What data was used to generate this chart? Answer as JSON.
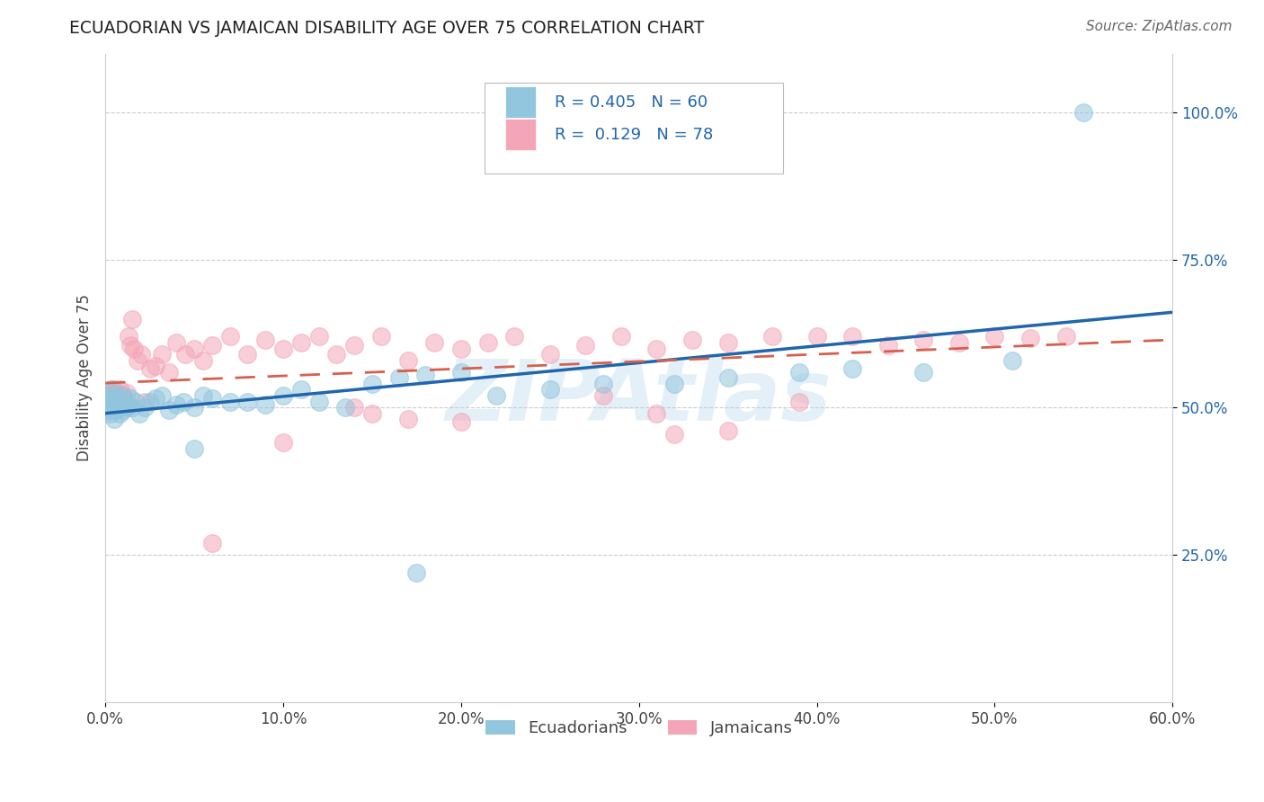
{
  "title": "ECUADORIAN VS JAMAICAN DISABILITY AGE OVER 75 CORRELATION CHART",
  "source_text": "Source: ZipAtlas.com",
  "ylabel": "Disability Age Over 75",
  "xlim": [
    0.0,
    0.6
  ],
  "ylim": [
    0.0,
    1.1
  ],
  "xtick_labels": [
    "0.0%",
    "10.0%",
    "20.0%",
    "30.0%",
    "40.0%",
    "50.0%",
    "60.0%"
  ],
  "xtick_vals": [
    0.0,
    0.1,
    0.2,
    0.3,
    0.4,
    0.5,
    0.6
  ],
  "ytick_labels": [
    "25.0%",
    "50.0%",
    "75.0%",
    "100.0%"
  ],
  "ytick_vals": [
    0.25,
    0.5,
    0.75,
    1.0
  ],
  "legend_label1": "Ecuadorians",
  "legend_label2": "Jamaicans",
  "R1": 0.405,
  "N1": 60,
  "R2": 0.129,
  "N2": 78,
  "color_blue": "#92c5de",
  "color_pink": "#f4a6b8",
  "line_blue": "#2166ac",
  "line_pink": "#d6604d",
  "watermark": "ZIPAtlas",
  "background_color": "#ffffff",
  "ecuadorians_x": [
    0.001,
    0.001,
    0.002,
    0.002,
    0.003,
    0.003,
    0.004,
    0.004,
    0.005,
    0.005,
    0.005,
    0.006,
    0.006,
    0.007,
    0.007,
    0.008,
    0.008,
    0.009,
    0.01,
    0.01,
    0.011,
    0.012,
    0.013,
    0.014,
    0.015,
    0.017,
    0.019,
    0.022,
    0.025,
    0.028,
    0.032,
    0.036,
    0.04,
    0.044,
    0.05,
    0.055,
    0.06,
    0.05,
    0.07,
    0.08,
    0.09,
    0.1,
    0.11,
    0.12,
    0.135,
    0.15,
    0.165,
    0.18,
    0.2,
    0.22,
    0.25,
    0.28,
    0.175,
    0.32,
    0.35,
    0.39,
    0.42,
    0.46,
    0.51,
    0.55
  ],
  "ecuadorians_y": [
    0.5,
    0.51,
    0.495,
    0.52,
    0.505,
    0.49,
    0.515,
    0.53,
    0.5,
    0.48,
    0.51,
    0.52,
    0.495,
    0.51,
    0.505,
    0.5,
    0.49,
    0.51,
    0.52,
    0.495,
    0.51,
    0.5,
    0.505,
    0.515,
    0.5,
    0.51,
    0.49,
    0.5,
    0.51,
    0.515,
    0.52,
    0.495,
    0.505,
    0.51,
    0.5,
    0.52,
    0.515,
    0.43,
    0.51,
    0.51,
    0.505,
    0.52,
    0.53,
    0.51,
    0.5,
    0.54,
    0.55,
    0.555,
    0.56,
    0.52,
    0.53,
    0.54,
    0.22,
    0.54,
    0.55,
    0.56,
    0.565,
    0.56,
    0.58,
    1.0
  ],
  "jamaicans_x": [
    0.001,
    0.001,
    0.002,
    0.002,
    0.003,
    0.003,
    0.004,
    0.004,
    0.005,
    0.005,
    0.005,
    0.006,
    0.006,
    0.007,
    0.007,
    0.008,
    0.008,
    0.009,
    0.01,
    0.01,
    0.011,
    0.012,
    0.013,
    0.014,
    0.015,
    0.016,
    0.018,
    0.02,
    0.022,
    0.025,
    0.028,
    0.032,
    0.036,
    0.04,
    0.045,
    0.05,
    0.055,
    0.06,
    0.07,
    0.08,
    0.09,
    0.1,
    0.11,
    0.12,
    0.13,
    0.14,
    0.155,
    0.17,
    0.185,
    0.2,
    0.215,
    0.23,
    0.25,
    0.27,
    0.29,
    0.31,
    0.33,
    0.35,
    0.375,
    0.4,
    0.42,
    0.44,
    0.46,
    0.48,
    0.5,
    0.52,
    0.54,
    0.32,
    0.2,
    0.15,
    0.17,
    0.28,
    0.35,
    0.39,
    0.06,
    0.1,
    0.14,
    0.31
  ],
  "jamaicans_y": [
    0.51,
    0.52,
    0.525,
    0.515,
    0.505,
    0.53,
    0.51,
    0.52,
    0.515,
    0.525,
    0.53,
    0.505,
    0.51,
    0.52,
    0.515,
    0.51,
    0.53,
    0.505,
    0.52,
    0.515,
    0.51,
    0.525,
    0.62,
    0.605,
    0.65,
    0.6,
    0.58,
    0.59,
    0.51,
    0.565,
    0.57,
    0.59,
    0.56,
    0.61,
    0.59,
    0.6,
    0.58,
    0.605,
    0.62,
    0.59,
    0.615,
    0.6,
    0.61,
    0.62,
    0.59,
    0.605,
    0.62,
    0.58,
    0.61,
    0.6,
    0.61,
    0.62,
    0.59,
    0.605,
    0.62,
    0.6,
    0.615,
    0.61,
    0.62,
    0.62,
    0.62,
    0.605,
    0.615,
    0.61,
    0.62,
    0.617,
    0.62,
    0.455,
    0.475,
    0.49,
    0.48,
    0.52,
    0.46,
    0.51,
    0.27,
    0.44,
    0.5,
    0.49
  ]
}
